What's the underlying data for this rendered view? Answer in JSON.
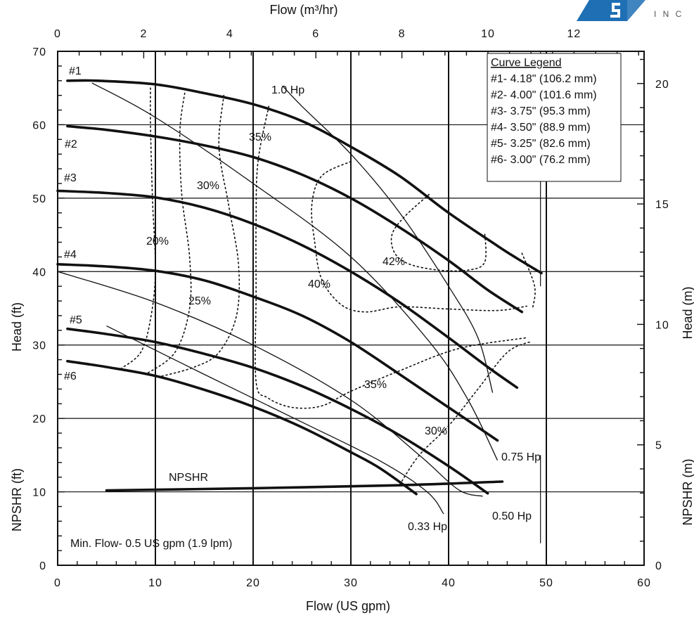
{
  "chart_data": {
    "type": "line",
    "x_bottom": {
      "label": "Flow (US gpm)",
      "range": [
        0,
        60
      ],
      "ticks": [
        0,
        10,
        20,
        30,
        40,
        50,
        60
      ]
    },
    "x_top": {
      "label": "Flow (m³/hr)",
      "range": [
        0,
        13.63
      ],
      "ticks": [
        0,
        2,
        4,
        6,
        8,
        10,
        12
      ]
    },
    "y_left": {
      "label": "Head (ft)",
      "range": [
        0,
        70
      ],
      "ticks": [
        0,
        10,
        20,
        30,
        40,
        50,
        60,
        70
      ]
    },
    "y_right": {
      "label": "Head (m)",
      "ticks": [
        0,
        5,
        10,
        15,
        20
      ]
    },
    "y_left_lower_label": "NPSHR (ft)",
    "y_right_lower_label": "NPSHR (m)",
    "grid": true,
    "legend": {
      "title": "Curve Legend",
      "entries": [
        "#1- 4.18\" (106.2 mm)",
        "#2- 4.00\" (101.6 mm)",
        "#3- 3.75\" (95.3 mm)",
        "#4- 3.50\" (88.9 mm)",
        "#5- 3.25\" (82.6 mm)",
        "#6- 3.00\" (76.2 mm)"
      ],
      "placement": "top-right"
    },
    "series": [
      {
        "name": "#1",
        "points": [
          [
            1,
            66
          ],
          [
            4,
            66
          ],
          [
            10,
            65.5
          ],
          [
            15,
            64.3
          ],
          [
            20,
            62.8
          ],
          [
            25,
            60.5
          ],
          [
            30,
            57
          ],
          [
            35,
            53
          ],
          [
            40,
            48
          ],
          [
            45,
            43.5
          ],
          [
            47,
            41.8
          ],
          [
            49.5,
            39.8
          ]
        ]
      },
      {
        "name": "#2",
        "points": [
          [
            1,
            59.8
          ],
          [
            5,
            59.3
          ],
          [
            10,
            58.4
          ],
          [
            15,
            57.2
          ],
          [
            20,
            55.6
          ],
          [
            25,
            53.2
          ],
          [
            30,
            50
          ],
          [
            35,
            46
          ],
          [
            40,
            41.5
          ],
          [
            44,
            37.5
          ],
          [
            47.5,
            34.5
          ]
        ]
      },
      {
        "name": "#3",
        "points": [
          [
            0,
            51
          ],
          [
            5,
            50.7
          ],
          [
            10,
            50.1
          ],
          [
            15,
            48.7
          ],
          [
            20,
            46.5
          ],
          [
            25,
            43.6
          ],
          [
            30,
            40
          ],
          [
            35,
            35.8
          ],
          [
            40,
            31
          ],
          [
            44,
            27
          ],
          [
            47,
            24.2
          ]
        ]
      },
      {
        "name": "#4",
        "points": [
          [
            0,
            41
          ],
          [
            5,
            40.7
          ],
          [
            10,
            40.1
          ],
          [
            15,
            38.8
          ],
          [
            20,
            36.6
          ],
          [
            25,
            34
          ],
          [
            30,
            30.4
          ],
          [
            35,
            26
          ],
          [
            40,
            21.5
          ],
          [
            45,
            17
          ]
        ]
      },
      {
        "name": "#5",
        "points": [
          [
            1,
            32.2
          ],
          [
            5,
            31.5
          ],
          [
            10,
            30.4
          ],
          [
            15,
            28.8
          ],
          [
            20,
            26.9
          ],
          [
            25,
            24.4
          ],
          [
            30,
            21.3
          ],
          [
            35,
            17.7
          ],
          [
            40,
            13.5
          ],
          [
            44,
            9.8
          ]
        ]
      },
      {
        "name": "#6",
        "points": [
          [
            1,
            27.8
          ],
          [
            5,
            27
          ],
          [
            10,
            25.8
          ],
          [
            15,
            23.9
          ],
          [
            20,
            21.6
          ],
          [
            25,
            18.8
          ],
          [
            30,
            15.4
          ],
          [
            33,
            13.2
          ],
          [
            36.7,
            9.7
          ]
        ]
      },
      {
        "name": "NPSHR",
        "points": [
          [
            5,
            10.2
          ],
          [
            20,
            10.5
          ],
          [
            35,
            10.9
          ],
          [
            45.5,
            11.4
          ]
        ]
      }
    ],
    "power_lines": [
      {
        "label": "1.0 Hp",
        "points": [
          [
            23,
            65.3
          ],
          [
            25,
            62.5
          ],
          [
            30,
            56
          ],
          [
            35,
            48
          ],
          [
            40,
            38
          ],
          [
            43,
            31
          ],
          [
            44.5,
            23.5
          ]
        ]
      },
      {
        "label": "0.75 Hp",
        "points": [
          [
            3.5,
            65.7
          ],
          [
            10,
            61
          ],
          [
            20,
            52
          ],
          [
            30,
            42
          ],
          [
            38,
            30.5
          ],
          [
            42,
            22.5
          ],
          [
            45,
            14.3
          ]
        ]
      },
      {
        "label": "0.50 Hp",
        "points": [
          [
            0,
            40
          ],
          [
            10,
            35.8
          ],
          [
            20,
            30
          ],
          [
            30,
            22.5
          ],
          [
            37,
            15
          ],
          [
            41,
            10.3
          ],
          [
            43.5,
            9.4
          ]
        ]
      },
      {
        "label": "0.33 Hp",
        "points": [
          [
            5,
            32.6
          ],
          [
            15,
            26
          ],
          [
            25,
            19.5
          ],
          [
            33,
            14.2
          ],
          [
            37.8,
            10
          ],
          [
            39.5,
            7
          ]
        ]
      }
    ],
    "efficiency_lines": [
      {
        "label": "20%",
        "points": [
          [
            9.5,
            65
          ],
          [
            9.5,
            60
          ],
          [
            9.7,
            50
          ],
          [
            10,
            40
          ],
          [
            9.5,
            33.5
          ],
          [
            8.5,
            29
          ],
          [
            6.5,
            26.8
          ]
        ]
      },
      {
        "label": "25%",
        "points": [
          [
            13,
            64.3
          ],
          [
            12.5,
            59
          ],
          [
            12.7,
            50.5
          ],
          [
            13.5,
            42
          ],
          [
            13.5,
            35
          ],
          [
            12,
            29
          ],
          [
            9,
            26
          ]
        ]
      },
      {
        "label": "30%",
        "points": [
          [
            17,
            64
          ],
          [
            16.5,
            57
          ],
          [
            17.5,
            49
          ],
          [
            18.5,
            41
          ],
          [
            18.3,
            34
          ],
          [
            16.5,
            29
          ],
          [
            14,
            27
          ],
          [
            10.5,
            25.7
          ]
        ]
      },
      {
        "label": "35%",
        "points": [
          [
            21.6,
            62.5
          ],
          [
            20.5,
            55
          ],
          [
            20.3,
            47
          ],
          [
            20.3,
            37
          ],
          [
            20.3,
            25
          ],
          [
            21.5,
            22.8
          ],
          [
            24,
            21.5
          ],
          [
            27,
            21.7
          ],
          [
            30,
            23.7
          ],
          [
            35,
            26.5
          ],
          [
            41,
            29.5
          ],
          [
            48,
            31
          ]
        ]
      },
      {
        "label": "40%",
        "points": [
          [
            30,
            55
          ],
          [
            27,
            53
          ],
          [
            26,
            49
          ],
          [
            26.3,
            44
          ],
          [
            27,
            39
          ],
          [
            29,
            35.5
          ],
          [
            31.5,
            34.5
          ],
          [
            35,
            35.2
          ],
          [
            40,
            34.9
          ],
          [
            45,
            34.7
          ],
          [
            48,
            35.3
          ]
        ]
      },
      {
        "label": "42%",
        "points": [
          [
            38,
            50.5
          ],
          [
            35.5,
            47.5
          ],
          [
            34.2,
            45
          ],
          [
            34.5,
            42.5
          ],
          [
            36,
            41
          ],
          [
            39,
            40.2
          ],
          [
            42,
            40.2
          ],
          [
            43.7,
            41.3
          ],
          [
            43.7,
            45.3
          ]
        ]
      },
      {
        "label": "30%",
        "points": [
          [
            35,
            11
          ],
          [
            37,
            15
          ],
          [
            40,
            19
          ],
          [
            43,
            24
          ],
          [
            46,
            29
          ],
          [
            48.5,
            30.5
          ]
        ]
      },
      {
        "label": "",
        "points": [
          [
            47.5,
            42.5
          ],
          [
            48.8,
            38
          ],
          [
            48.6,
            35
          ]
        ]
      }
    ],
    "annotations": [
      "#1",
      "#2",
      "#3",
      "#4",
      "#5",
      "#6",
      "1.0 Hp",
      "0.75 Hp",
      "0.50 Hp",
      "0.33 Hp",
      "35%",
      "30%",
      "20%",
      "25%",
      "40%",
      "42%",
      "35%",
      "30%",
      "NPSHR",
      "Min. Flow- 0.5 US gpm (1.9 lpm)"
    ]
  },
  "logo": {
    "text": "I N C",
    "color": "#1f6fb5"
  }
}
